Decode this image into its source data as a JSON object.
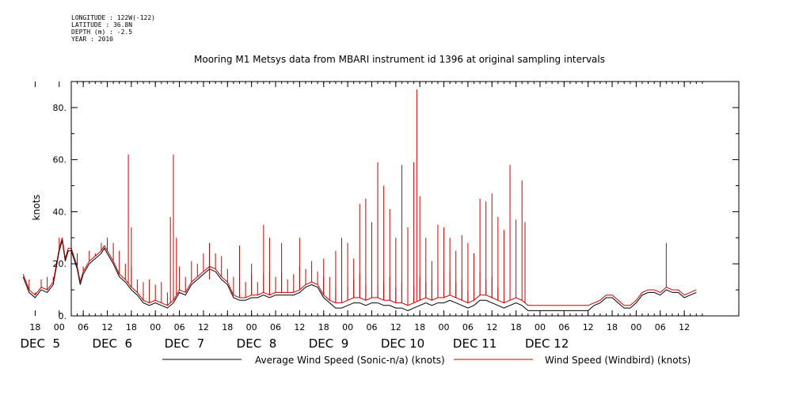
{
  "meta": {
    "longitude": "LONGITUDE : 122W(-122)",
    "latitude": "LATITUDE : 36.8N",
    "depth": "DEPTH (m) : -2.5",
    "year": "YEAR : 2010"
  },
  "chart_data": {
    "type": "line",
    "title": "Mooring M1 Metsys data from MBARI instrument id 1396 at original sampling intervals",
    "ylabel": "knots",
    "xlabel": "",
    "ylim": [
      0,
      90
    ],
    "yticks": [
      0,
      20,
      40,
      60,
      80
    ],
    "ytick_labels": [
      "0.",
      "20.",
      "40.",
      "60.",
      "80."
    ],
    "x_unit": "hours since DEC 5 00:00",
    "xlim": [
      -14,
      99
    ],
    "hour_ticks": [
      {
        "t": -12,
        "label": "18"
      },
      {
        "t": -8,
        "label": "00"
      },
      {
        "t": -4,
        "label": "06"
      },
      {
        "t": 0,
        "label": "12"
      },
      {
        "t": 4,
        "label": "18"
      },
      {
        "t": 8,
        "label": "00"
      },
      {
        "t": 12,
        "label": "06"
      },
      {
        "t": 16,
        "label": "12"
      },
      {
        "t": 20,
        "label": "18"
      },
      {
        "t": 24,
        "label": "00"
      },
      {
        "t": 28,
        "label": "06"
      },
      {
        "t": 32,
        "label": "12"
      },
      {
        "t": 36,
        "label": "18"
      },
      {
        "t": 40,
        "label": "00"
      },
      {
        "t": 44,
        "label": "06"
      },
      {
        "t": 48,
        "label": "12"
      },
      {
        "t": 52,
        "label": "18"
      },
      {
        "t": 56,
        "label": "00"
      },
      {
        "t": 60,
        "label": "06"
      },
      {
        "t": 64,
        "label": "12"
      },
      {
        "t": 68,
        "label": "18"
      },
      {
        "t": 72,
        "label": "00"
      },
      {
        "t": 76,
        "label": "06"
      },
      {
        "t": 80,
        "label": "12"
      },
      {
        "t": 84,
        "label": "18"
      },
      {
        "t": 88,
        "label": "00"
      },
      {
        "t": 92,
        "label": "06"
      },
      {
        "t": 96,
        "label": "12"
      }
    ],
    "day_labels": [
      {
        "t": -14.5,
        "label": "DEC  5"
      },
      {
        "t": -2.5,
        "label": "DEC  6"
      },
      {
        "t": 9.5,
        "label": "DEC  7"
      },
      {
        "t": 21.5,
        "label": "DEC  8"
      },
      {
        "t": 33.5,
        "label": "DEC  9"
      },
      {
        "t": 45.5,
        "label": "DEC 10"
      },
      {
        "t": 57.5,
        "label": "DEC 11"
      },
      {
        "t": 69.5,
        "label": "DEC 12"
      }
    ],
    "series": [
      {
        "name": "Average Wind Speed (Sonic-n/a) (knots)",
        "color": "#000000",
        "points": [
          [
            -14,
            15
          ],
          [
            -13,
            9
          ],
          [
            -12,
            7
          ],
          [
            -11,
            10
          ],
          [
            -10,
            9
          ],
          [
            -9,
            12
          ],
          [
            -8,
            25
          ],
          [
            -7.5,
            29
          ],
          [
            -7,
            21
          ],
          [
            -6.5,
            25
          ],
          [
            -6,
            25
          ],
          [
            -5,
            18
          ],
          [
            -4.5,
            12
          ],
          [
            -4,
            16
          ],
          [
            -3,
            20
          ],
          [
            -2,
            22
          ],
          [
            -1,
            24
          ],
          [
            -0.5,
            26
          ],
          [
            0,
            24
          ],
          [
            1,
            20
          ],
          [
            2,
            15
          ],
          [
            3,
            13
          ],
          [
            4,
            10
          ],
          [
            5,
            8
          ],
          [
            6,
            5
          ],
          [
            7,
            4
          ],
          [
            8,
            5
          ],
          [
            9,
            4
          ],
          [
            10,
            3
          ],
          [
            11,
            5
          ],
          [
            12,
            9
          ],
          [
            13,
            8
          ],
          [
            14,
            12
          ],
          [
            15,
            14
          ],
          [
            16,
            16
          ],
          [
            17,
            18
          ],
          [
            18,
            17
          ],
          [
            19,
            14
          ],
          [
            20,
            12
          ],
          [
            21,
            7
          ],
          [
            22,
            6
          ],
          [
            23,
            6
          ],
          [
            24,
            7
          ],
          [
            25,
            7
          ],
          [
            26,
            8
          ],
          [
            27,
            7
          ],
          [
            28,
            8
          ],
          [
            29,
            8
          ],
          [
            30,
            8
          ],
          [
            31,
            8
          ],
          [
            32,
            9
          ],
          [
            33,
            11
          ],
          [
            34,
            12
          ],
          [
            35,
            11
          ],
          [
            36,
            7
          ],
          [
            37,
            5
          ],
          [
            38,
            3
          ],
          [
            39,
            3
          ],
          [
            40,
            4
          ],
          [
            41,
            5
          ],
          [
            42,
            5
          ],
          [
            43,
            4
          ],
          [
            44,
            5
          ],
          [
            45,
            5
          ],
          [
            46,
            4
          ],
          [
            47,
            4
          ],
          [
            48,
            3
          ],
          [
            49,
            3
          ],
          [
            50,
            2
          ],
          [
            51,
            3
          ],
          [
            52,
            4
          ],
          [
            53,
            5
          ],
          [
            54,
            4
          ],
          [
            55,
            5
          ],
          [
            56,
            5
          ],
          [
            57,
            6
          ],
          [
            58,
            5
          ],
          [
            59,
            4
          ],
          [
            60,
            3
          ],
          [
            61,
            4
          ],
          [
            62,
            6
          ],
          [
            63,
            6
          ],
          [
            64,
            5
          ],
          [
            65,
            4
          ],
          [
            66,
            3
          ],
          [
            67,
            4
          ],
          [
            68,
            5
          ],
          [
            69,
            4
          ],
          [
            70,
            2
          ],
          [
            71,
            2
          ],
          [
            72,
            2
          ],
          [
            73,
            2
          ],
          [
            74,
            2
          ],
          [
            75,
            2
          ],
          [
            76,
            2
          ],
          [
            77,
            2
          ],
          [
            78,
            2
          ],
          [
            79,
            2
          ],
          [
            80,
            2
          ],
          [
            81,
            4
          ],
          [
            82,
            5
          ],
          [
            83,
            7
          ],
          [
            84,
            7
          ],
          [
            85,
            5
          ],
          [
            86,
            3
          ],
          [
            87,
            3
          ],
          [
            88,
            5
          ],
          [
            89,
            8
          ],
          [
            90,
            9
          ],
          [
            91,
            9
          ],
          [
            92,
            8
          ],
          [
            93,
            10
          ],
          [
            94,
            9
          ],
          [
            95,
            9
          ],
          [
            96,
            7
          ],
          [
            97,
            8
          ],
          [
            98,
            9
          ]
        ]
      },
      {
        "name": "Wind Speed (Windbird) (knots)",
        "color": "#cc0000",
        "points": [
          [
            -14,
            16
          ],
          [
            -13,
            10
          ],
          [
            -12,
            8
          ],
          [
            -11,
            11
          ],
          [
            -10,
            10
          ],
          [
            -9,
            13
          ],
          [
            -8,
            26
          ],
          [
            -7.5,
            30
          ],
          [
            -7,
            22
          ],
          [
            -6.5,
            26
          ],
          [
            -6,
            26
          ],
          [
            -5,
            19
          ],
          [
            -4.5,
            13
          ],
          [
            -4,
            17
          ],
          [
            -3,
            21
          ],
          [
            -2,
            23
          ],
          [
            -1,
            25
          ],
          [
            -0.5,
            27
          ],
          [
            0,
            25
          ],
          [
            1,
            21
          ],
          [
            2,
            16
          ],
          [
            3,
            14
          ],
          [
            4,
            11
          ],
          [
            5,
            9
          ],
          [
            6,
            6
          ],
          [
            7,
            5
          ],
          [
            8,
            6
          ],
          [
            9,
            5
          ],
          [
            10,
            4
          ],
          [
            11,
            6
          ],
          [
            12,
            10
          ],
          [
            13,
            9
          ],
          [
            14,
            13
          ],
          [
            15,
            15
          ],
          [
            16,
            17
          ],
          [
            17,
            19
          ],
          [
            18,
            18
          ],
          [
            19,
            15
          ],
          [
            20,
            13
          ],
          [
            21,
            8
          ],
          [
            22,
            7
          ],
          [
            23,
            7
          ],
          [
            24,
            8
          ],
          [
            25,
            8
          ],
          [
            26,
            9
          ],
          [
            27,
            8
          ],
          [
            28,
            9
          ],
          [
            29,
            9
          ],
          [
            30,
            9
          ],
          [
            31,
            9
          ],
          [
            32,
            10
          ],
          [
            33,
            12
          ],
          [
            34,
            13
          ],
          [
            35,
            12
          ],
          [
            36,
            8
          ],
          [
            37,
            6
          ],
          [
            38,
            5
          ],
          [
            39,
            5
          ],
          [
            40,
            6
          ],
          [
            41,
            7
          ],
          [
            42,
            7
          ],
          [
            43,
            6
          ],
          [
            44,
            7
          ],
          [
            45,
            7
          ],
          [
            46,
            6
          ],
          [
            47,
            6
          ],
          [
            48,
            5
          ],
          [
            49,
            5
          ],
          [
            50,
            4
          ],
          [
            51,
            5
          ],
          [
            52,
            6
          ],
          [
            53,
            7
          ],
          [
            54,
            6
          ],
          [
            55,
            7
          ],
          [
            56,
            7
          ],
          [
            57,
            8
          ],
          [
            58,
            7
          ],
          [
            59,
            6
          ],
          [
            60,
            5
          ],
          [
            61,
            6
          ],
          [
            62,
            8
          ],
          [
            63,
            8
          ],
          [
            64,
            7
          ],
          [
            65,
            6
          ],
          [
            66,
            5
          ],
          [
            67,
            6
          ],
          [
            68,
            7
          ],
          [
            69,
            6
          ],
          [
            70,
            4
          ],
          [
            71,
            4
          ],
          [
            72,
            4
          ],
          [
            73,
            4
          ],
          [
            74,
            4
          ],
          [
            75,
            4
          ],
          [
            76,
            4
          ],
          [
            77,
            4
          ],
          [
            78,
            4
          ],
          [
            79,
            4
          ],
          [
            80,
            4
          ],
          [
            81,
            5
          ],
          [
            82,
            6
          ],
          [
            83,
            8
          ],
          [
            84,
            8
          ],
          [
            85,
            6
          ],
          [
            86,
            4
          ],
          [
            87,
            4
          ],
          [
            88,
            6
          ],
          [
            89,
            9
          ],
          [
            90,
            10
          ],
          [
            91,
            10
          ],
          [
            92,
            9
          ],
          [
            93,
            11
          ],
          [
            94,
            10
          ],
          [
            95,
            10
          ],
          [
            96,
            8
          ],
          [
            97,
            9
          ],
          [
            98,
            10
          ]
        ],
        "spike_interval_hours": 1,
        "spike_start": -13,
        "spike_end": 65,
        "spikes": [
          [
            3.5,
            62
          ],
          [
            4,
            34
          ],
          [
            10.5,
            38
          ],
          [
            11,
            62
          ],
          [
            11.5,
            30
          ],
          [
            17,
            14
          ],
          [
            22,
            27
          ],
          [
            24,
            20
          ],
          [
            26,
            35
          ],
          [
            27,
            30
          ],
          [
            29,
            28
          ],
          [
            32,
            30
          ],
          [
            36,
            22
          ],
          [
            38,
            25
          ],
          [
            39,
            30
          ],
          [
            40,
            28
          ],
          [
            41,
            22
          ],
          [
            42,
            43
          ],
          [
            43,
            45
          ],
          [
            44,
            36
          ],
          [
            45,
            59
          ],
          [
            46,
            50
          ],
          [
            47,
            41
          ],
          [
            48,
            30
          ],
          [
            49,
            58
          ],
          [
            50,
            34
          ],
          [
            51,
            59
          ],
          [
            51.5,
            87
          ],
          [
            52,
            46
          ],
          [
            53,
            30
          ],
          [
            54,
            21
          ],
          [
            55,
            35
          ],
          [
            56,
            34
          ],
          [
            57,
            30
          ],
          [
            58,
            25
          ],
          [
            59,
            31
          ],
          [
            60,
            28
          ],
          [
            61,
            24
          ],
          [
            62,
            45
          ],
          [
            63,
            44
          ],
          [
            64,
            47
          ],
          [
            65,
            38
          ],
          [
            66,
            33
          ],
          [
            67,
            58
          ],
          [
            68,
            37
          ],
          [
            69,
            52
          ],
          [
            69.5,
            36
          ],
          [
            93,
            28
          ]
        ]
      }
    ],
    "legend": "bottom"
  }
}
